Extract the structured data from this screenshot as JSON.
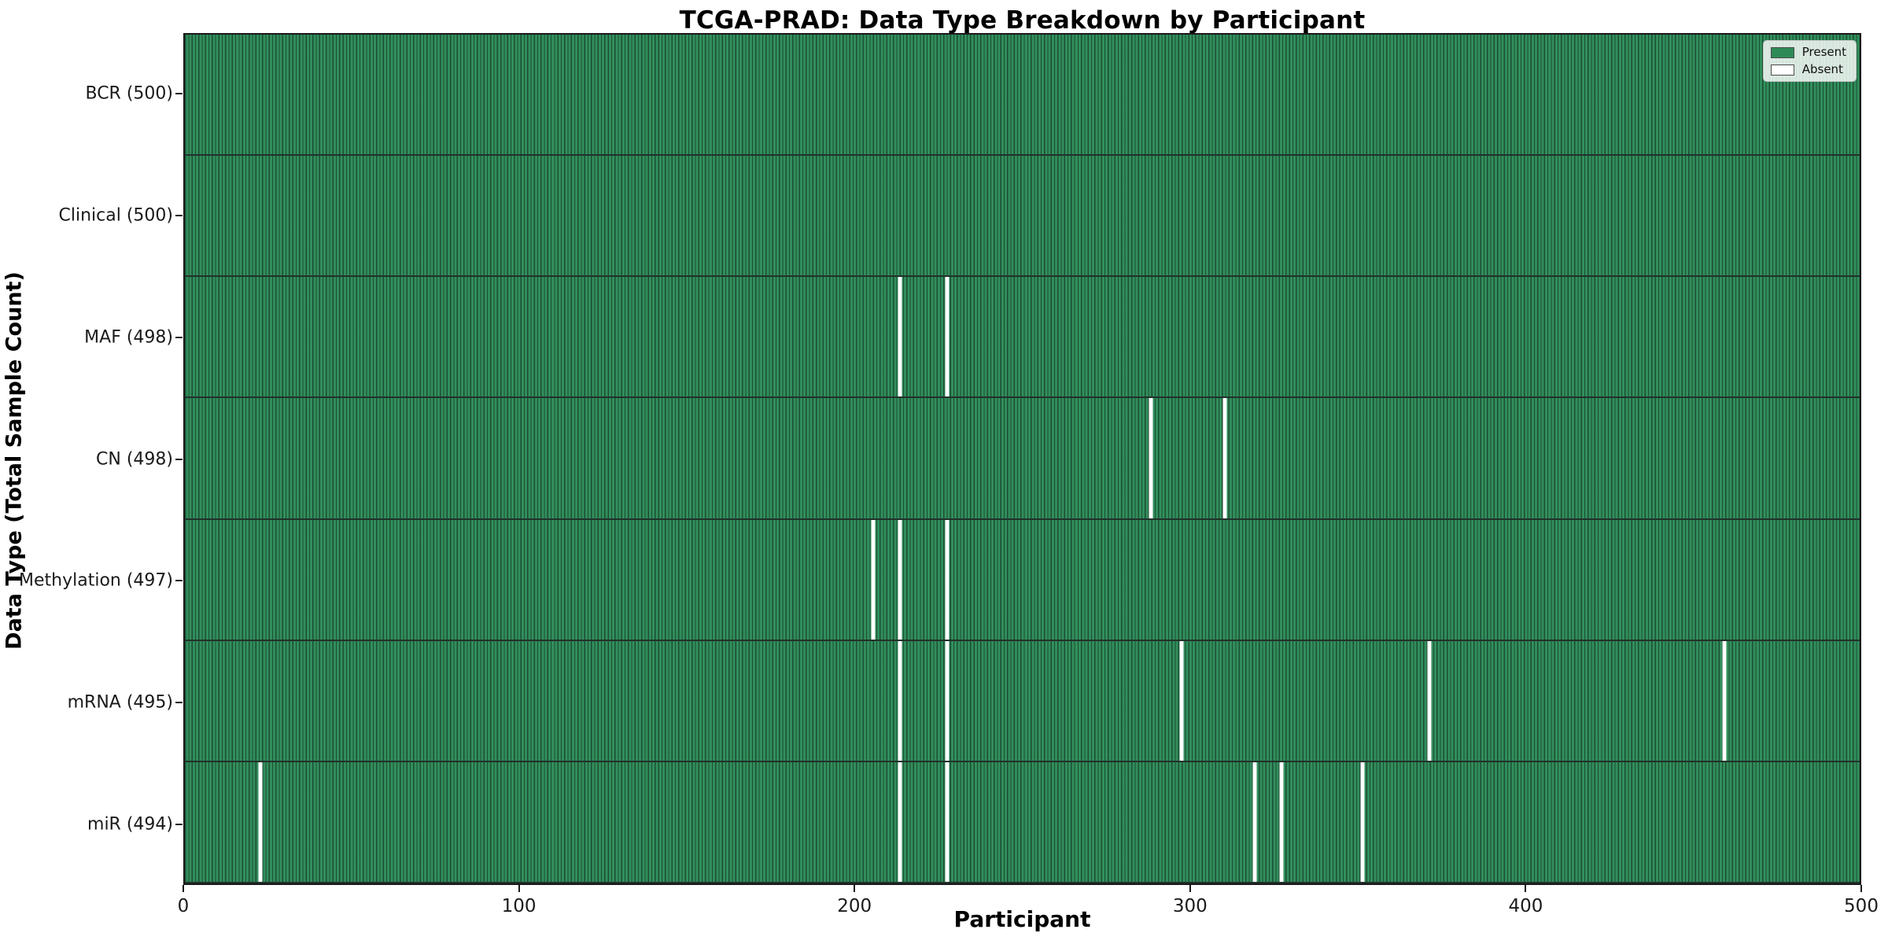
{
  "chart_data": {
    "type": "heatmap",
    "title": "TCGA-PRAD: Data Type Breakdown by Participant",
    "xlabel": "Participant",
    "ylabel": "Data Type (Total Sample Count)",
    "xlim": [
      0,
      500
    ],
    "x_ticks": [
      0,
      100,
      200,
      300,
      400,
      500
    ],
    "participants_total": 500,
    "grid": false,
    "legend_position": "upper right",
    "colors": {
      "present": "#2e8b57",
      "present_edge": "#1d4d34",
      "absent": "#ffffff"
    },
    "rows": [
      {
        "label": "BCR (500)",
        "data_type": "BCR",
        "total": 500,
        "absent_participants": []
      },
      {
        "label": "Clinical (500)",
        "data_type": "Clinical",
        "total": 500,
        "absent_participants": []
      },
      {
        "label": "MAF (498)",
        "data_type": "MAF",
        "total": 498,
        "absent_participants": [
          213,
          227
        ]
      },
      {
        "label": "CN (498)",
        "data_type": "CN",
        "total": 498,
        "absent_participants": [
          288,
          310
        ]
      },
      {
        "label": "Methylation (497)",
        "data_type": "Methylation",
        "total": 497,
        "absent_participants": [
          205,
          213,
          227
        ]
      },
      {
        "label": "mRNA (495)",
        "data_type": "mRNA",
        "total": 495,
        "absent_participants": [
          213,
          227,
          297,
          371,
          459
        ]
      },
      {
        "label": "miR (494)",
        "data_type": "miR",
        "total": 494,
        "absent_participants": [
          22,
          213,
          227,
          319,
          327,
          351
        ]
      }
    ],
    "legend_entries": [
      {
        "label": "Present",
        "color": "#2e8b57"
      },
      {
        "label": "Absent",
        "color": "#ffffff"
      }
    ]
  }
}
